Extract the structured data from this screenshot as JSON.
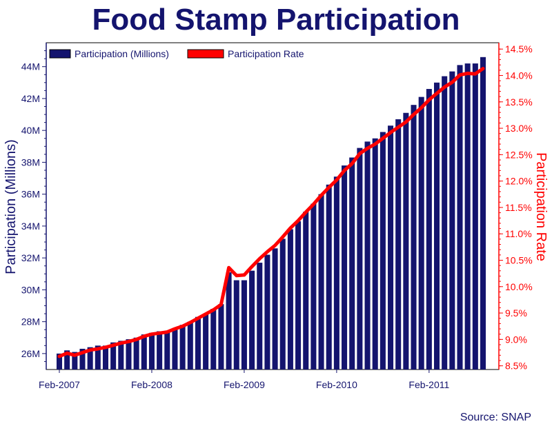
{
  "chart_data": {
    "type": "bar",
    "title": "Food Stamp Participation",
    "source": "Source: SNAP",
    "x_tick_labels": [
      "Feb-2007",
      "Feb-2008",
      "Feb-2009",
      "Feb-2010",
      "Feb-2011"
    ],
    "x_tick_month_index": [
      0,
      12,
      24,
      36,
      48
    ],
    "y_left": {
      "label": "Participation (Millions)",
      "range": [
        25,
        45.5
      ],
      "ticks": [
        26,
        28,
        30,
        32,
        34,
        36,
        38,
        40,
        42,
        44
      ],
      "tick_labels": [
        "26M",
        "28M",
        "30M",
        "32M",
        "34M",
        "36M",
        "38M",
        "40M",
        "42M",
        "44M"
      ]
    },
    "y_right": {
      "label": "Participation Rate",
      "range": [
        8.43,
        14.62
      ],
      "ticks": [
        8.5,
        9.0,
        9.5,
        10.0,
        10.5,
        11.0,
        11.5,
        12.0,
        12.5,
        13.0,
        13.5,
        14.0,
        14.5
      ],
      "tick_labels": [
        "8.5%",
        "9.0%",
        "9.5%",
        "10.0%",
        "10.5%",
        "11.0%",
        "11.5%",
        "12.0%",
        "12.5%",
        "13.0%",
        "13.5%",
        "14.0%",
        "14.5%"
      ]
    },
    "legend": {
      "position": "top-left",
      "bar_label": "Participation (Millions)",
      "line_label": "Participation Rate"
    },
    "series": [
      {
        "name": "Participation (Millions)",
        "kind": "bar",
        "axis": "left",
        "color": "#14146e",
        "values": [
          26.0,
          26.2,
          26.1,
          26.3,
          26.4,
          26.5,
          26.5,
          26.7,
          26.8,
          26.9,
          27.0,
          27.2,
          27.3,
          27.4,
          27.4,
          27.6,
          27.8,
          28.0,
          28.3,
          28.5,
          28.8,
          29.1,
          31.1,
          30.6,
          30.6,
          31.2,
          31.7,
          32.2,
          32.6,
          33.2,
          33.8,
          34.3,
          34.9,
          35.4,
          36.0,
          36.6,
          37.1,
          37.8,
          38.3,
          38.9,
          39.3,
          39.5,
          39.9,
          40.3,
          40.7,
          41.1,
          41.6,
          42.1,
          42.6,
          43.0,
          43.4,
          43.7,
          44.1,
          44.2,
          44.2,
          44.6
        ]
      },
      {
        "name": "Participation Rate",
        "kind": "line",
        "axis": "right",
        "color": "#ff0000",
        "values": [
          8.68,
          8.74,
          8.7,
          8.75,
          8.8,
          8.82,
          8.85,
          8.89,
          8.93,
          8.96,
          9.0,
          9.06,
          9.1,
          9.12,
          9.14,
          9.2,
          9.25,
          9.32,
          9.4,
          9.48,
          9.56,
          9.66,
          10.36,
          10.21,
          10.22,
          10.38,
          10.53,
          10.66,
          10.78,
          10.94,
          11.11,
          11.25,
          11.41,
          11.56,
          11.73,
          11.88,
          12.02,
          12.2,
          12.33,
          12.52,
          12.62,
          12.7,
          12.81,
          12.92,
          13.02,
          13.12,
          13.26,
          13.39,
          13.54,
          13.66,
          13.78,
          13.87,
          14.01,
          14.04,
          14.03,
          14.13
        ]
      }
    ]
  },
  "colors": {
    "primary": "#14146e",
    "accent": "#ff0000",
    "background": "#ffffff"
  }
}
